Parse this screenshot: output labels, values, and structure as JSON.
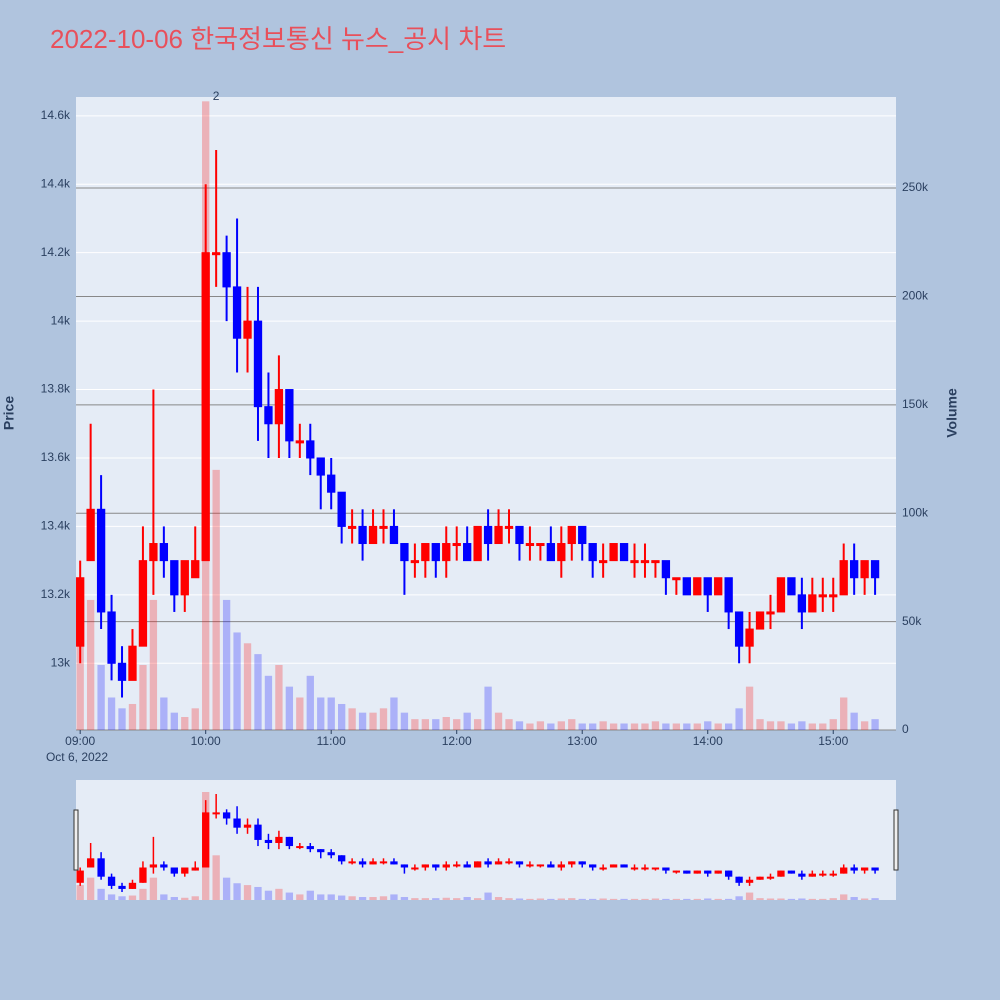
{
  "chart_data": {
    "type": "candlestick",
    "title": "2022-10-06 한국정보통신 뉴스_공시 차트",
    "y_label": "Price",
    "y2_label": "Volume",
    "annotations": [
      {
        "text": "2",
        "x": "2022-10-06 10:05"
      }
    ],
    "increasing_color": "#ff0000",
    "decreasing_color": "#0000ff",
    "x": [
      "2022-10-06 09:00",
      "2022-10-06 09:05",
      "2022-10-06 09:10",
      "2022-10-06 09:15",
      "2022-10-06 09:20",
      "2022-10-06 09:25",
      "2022-10-06 09:30",
      "2022-10-06 09:35",
      "2022-10-06 09:40",
      "2022-10-06 09:45",
      "2022-10-06 09:50",
      "2022-10-06 09:55",
      "2022-10-06 10:00",
      "2022-10-06 10:05",
      "2022-10-06 10:10",
      "2022-10-06 10:15",
      "2022-10-06 10:20",
      "2022-10-06 10:25",
      "2022-10-06 10:30",
      "2022-10-06 10:35",
      "2022-10-06 10:40",
      "2022-10-06 10:45",
      "2022-10-06 10:50",
      "2022-10-06 10:55",
      "2022-10-06 11:00",
      "2022-10-06 11:05",
      "2022-10-06 11:10",
      "2022-10-06 11:15",
      "2022-10-06 11:20",
      "2022-10-06 11:25",
      "2022-10-06 11:30",
      "2022-10-06 11:35",
      "2022-10-06 11:40",
      "2022-10-06 11:45",
      "2022-10-06 11:50",
      "2022-10-06 11:55",
      "2022-10-06 12:00",
      "2022-10-06 12:05",
      "2022-10-06 12:10",
      "2022-10-06 12:15",
      "2022-10-06 12:20",
      "2022-10-06 12:25",
      "2022-10-06 12:30",
      "2022-10-06 12:35",
      "2022-10-06 12:40",
      "2022-10-06 12:45",
      "2022-10-06 12:50",
      "2022-10-06 12:55",
      "2022-10-06 13:00",
      "2022-10-06 13:05",
      "2022-10-06 13:10",
      "2022-10-06 13:15",
      "2022-10-06 13:20",
      "2022-10-06 13:25",
      "2022-10-06 13:30",
      "2022-10-06 13:35",
      "2022-10-06 13:40",
      "2022-10-06 13:45",
      "2022-10-06 13:50",
      "2022-10-06 13:55",
      "2022-10-06 14:00",
      "2022-10-06 14:05",
      "2022-10-06 14:10",
      "2022-10-06 14:15",
      "2022-10-06 14:20",
      "2022-10-06 14:25",
      "2022-10-06 14:30",
      "2022-10-06 14:35",
      "2022-10-06 14:40",
      "2022-10-06 14:45",
      "2022-10-06 14:50",
      "2022-10-06 14:55",
      "2022-10-06 15:00",
      "2022-10-06 15:05",
      "2022-10-06 15:10",
      "2022-10-06 15:15",
      "2022-10-06 15:20"
    ],
    "open": [
      13050,
      13300,
      13450,
      13150,
      13000,
      12950,
      13050,
      13300,
      13350,
      13300,
      13200,
      13250,
      13300,
      14200,
      14200,
      14100,
      13950,
      14000,
      13750,
      13700,
      13800,
      13650,
      13650,
      13600,
      13550,
      13500,
      13400,
      13400,
      13350,
      13400,
      13400,
      13350,
      13300,
      13300,
      13350,
      13300,
      13350,
      13350,
      13300,
      13400,
      13350,
      13400,
      13400,
      13350,
      13350,
      13350,
      13300,
      13350,
      13400,
      13350,
      13300,
      13300,
      13350,
      13300,
      13300,
      13300,
      13300,
      13250,
      13250,
      13200,
      13250,
      13200,
      13250,
      13150,
      13050,
      13100,
      13150,
      13150,
      13250,
      13200,
      13150,
      13200,
      13200,
      13200,
      13300,
      13250,
      13300
    ],
    "high": [
      13300,
      13700,
      13550,
      13200,
      13050,
      13100,
      13400,
      13800,
      13400,
      13300,
      13300,
      13400,
      14400,
      14500,
      14250,
      14300,
      14100,
      14100,
      13850,
      13900,
      13800,
      13700,
      13700,
      13600,
      13600,
      13500,
      13450,
      13450,
      13450,
      13450,
      13450,
      13350,
      13350,
      13350,
      13350,
      13400,
      13400,
      13400,
      13400,
      13450,
      13450,
      13450,
      13400,
      13400,
      13350,
      13400,
      13400,
      13400,
      13400,
      13350,
      13350,
      13350,
      13350,
      13350,
      13350,
      13300,
      13300,
      13250,
      13250,
      13250,
      13250,
      13250,
      13250,
      13150,
      13150,
      13150,
      13200,
      13250,
      13250,
      13250,
      13250,
      13250,
      13250,
      13350,
      13350,
      13300,
      13300
    ],
    "low": [
      13000,
      13300,
      13100,
      12950,
      12900,
      12950,
      13050,
      13200,
      13250,
      13150,
      13150,
      13250,
      13300,
      14100,
      14000,
      13850,
      13850,
      13650,
      13600,
      13600,
      13600,
      13600,
      13550,
      13450,
      13450,
      13350,
      13350,
      13300,
      13350,
      13350,
      13350,
      13200,
      13250,
      13250,
      13250,
      13250,
      13300,
      13300,
      13300,
      13300,
      13350,
      13350,
      13300,
      13300,
      13300,
      13300,
      13250,
      13300,
      13300,
      13250,
      13250,
      13300,
      13300,
      13250,
      13250,
      13250,
      13200,
      13200,
      13200,
      13200,
      13150,
      13200,
      13100,
      13000,
      13000,
      13100,
      13100,
      13150,
      13200,
      13100,
      13150,
      13150,
      13150,
      13200,
      13200,
      13200,
      13200
    ],
    "close": [
      13250,
      13450,
      13150,
      13000,
      12950,
      13050,
      13300,
      13350,
      13300,
      13200,
      13300,
      13300,
      14200,
      14200,
      14100,
      13950,
      14000,
      13750,
      13700,
      13800,
      13650,
      13650,
      13600,
      13550,
      13500,
      13400,
      13400,
      13350,
      13400,
      13400,
      13350,
      13300,
      13300,
      13350,
      13300,
      13350,
      13350,
      13300,
      13400,
      13350,
      13400,
      13400,
      13350,
      13350,
      13350,
      13300,
      13350,
      13400,
      13350,
      13300,
      13300,
      13350,
      13300,
      13300,
      13300,
      13300,
      13250,
      13250,
      13200,
      13250,
      13200,
      13250,
      13150,
      13050,
      13100,
      13150,
      13150,
      13250,
      13200,
      13150,
      13200,
      13200,
      13200,
      13300,
      13250,
      13300,
      13250
    ],
    "volume": [
      40000,
      60000,
      30000,
      15000,
      10000,
      12000,
      30000,
      60000,
      15000,
      8000,
      6000,
      10000,
      290000,
      120000,
      60000,
      45000,
      40000,
      35000,
      25000,
      30000,
      20000,
      15000,
      25000,
      15000,
      15000,
      12000,
      10000,
      8000,
      8000,
      10000,
      15000,
      8000,
      5000,
      5000,
      5000,
      6000,
      5000,
      8000,
      5000,
      20000,
      8000,
      5000,
      4000,
      3000,
      4000,
      3000,
      4000,
      5000,
      3000,
      3000,
      4000,
      3000,
      3000,
      3000,
      3000,
      4000,
      3000,
      3000,
      3000,
      3000,
      4000,
      3000,
      3000,
      10000,
      20000,
      5000,
      4000,
      4000,
      3000,
      4000,
      3000,
      3000,
      5000,
      15000,
      8000,
      4000,
      5000
    ],
    "xlim": [
      "2022-10-06 08:58",
      "2022-10-06 15:30"
    ],
    "xticks": [
      {
        "value": "2022-10-06 09:00",
        "label": "09:00"
      },
      {
        "value": "2022-10-06 10:00",
        "label": "10:00"
      },
      {
        "value": "2022-10-06 11:00",
        "label": "11:00"
      },
      {
        "value": "2022-10-06 12:00",
        "label": "12:00"
      },
      {
        "value": "2022-10-06 13:00",
        "label": "13:00"
      },
      {
        "value": "2022-10-06 14:00",
        "label": "14:00"
      },
      {
        "value": "2022-10-06 15:00",
        "label": "15:00"
      }
    ],
    "x_date_label": "Oct 6, 2022",
    "ylim": [
      12805,
      14655
    ],
    "yticks": [
      {
        "value": 13000,
        "label": "13k"
      },
      {
        "value": 13200,
        "label": "13.2k"
      },
      {
        "value": 13400,
        "label": "13.4k"
      },
      {
        "value": 13600,
        "label": "13.6k"
      },
      {
        "value": 13800,
        "label": "13.8k"
      },
      {
        "value": 14000,
        "label": "14k"
      },
      {
        "value": 14200,
        "label": "14.2k"
      },
      {
        "value": 14400,
        "label": "14.4k"
      },
      {
        "value": 14600,
        "label": "14.6k"
      }
    ],
    "y2lim": [
      0,
      292000
    ],
    "y2ticks": [
      0,
      {
        "value": 50000,
        "label": "50k"
      },
      {
        "value": 100000,
        "label": "100k"
      },
      {
        "value": 150000,
        "label": "150k"
      },
      {
        "value": 200000,
        "label": "200k"
      },
      {
        "value": 250000,
        "label": "250k"
      }
    ],
    "grid": true,
    "range_slider": true
  }
}
